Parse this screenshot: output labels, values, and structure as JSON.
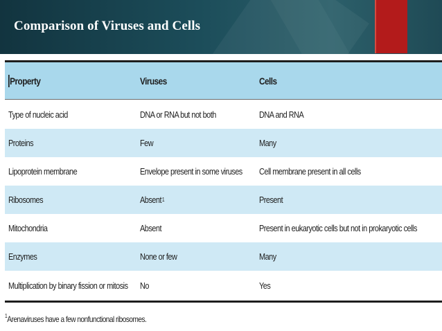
{
  "slide": {
    "title": "Comparison of Viruses and Cells"
  },
  "table": {
    "headers": [
      "Property",
      "Viruses",
      "Cells"
    ],
    "rows": [
      [
        "Type of nucleic acid",
        "DNA or RNA but not both",
        "DNA and RNA"
      ],
      [
        "Proteins",
        "Few",
        "Many"
      ],
      [
        "Lipoprotein membrane",
        "Envelope present in some viruses",
        "Cell membrane present in all cells"
      ],
      [
        "Ribosomes",
        "Absent",
        "Present"
      ],
      [
        "Mitochondria",
        "Absent",
        "Present in eukaryotic cells but not in prokaryotic cells"
      ],
      [
        "Enzymes",
        "None or few",
        "Many"
      ],
      [
        "Multiplication by binary fission or mitosis",
        "No",
        "Yes"
      ]
    ],
    "ribosomes_footnote_marker": "1"
  },
  "footnote": {
    "marker": "1",
    "text": "Arenaviruses have a few nonfunctional ribosomes."
  },
  "colors": {
    "header_band": "#a9d8ec",
    "stripe_band": "#cfe9f5",
    "accent_red": "#b31b1b",
    "title_bar": "#1c4d5a"
  }
}
